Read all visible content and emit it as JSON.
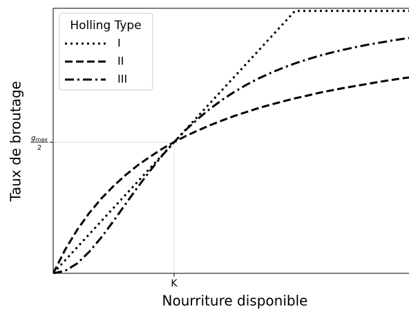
{
  "chart_data": {
    "type": "line",
    "xlabel": "Nourriture disponible",
    "ylabel": "Taux de broutage",
    "legend_title": "Holling Type",
    "legend": "upper left",
    "x": [
      0,
      0.1,
      0.2,
      0.3,
      0.4,
      0.5,
      0.6,
      0.7,
      0.8,
      0.9,
      1,
      1.1,
      1.2,
      1.3,
      1.4,
      1.5,
      1.6,
      1.7,
      1.8,
      1.9,
      2,
      2.1,
      2.2,
      2.3,
      2.4,
      2.5,
      2.6,
      2.7,
      2.8,
      2.9,
      3
    ],
    "series": [
      {
        "name": "I",
        "color": "#000000",
        "linestyle": "dotted",
        "values": [
          0,
          0.05,
          0.1,
          0.15,
          0.2,
          0.25,
          0.3,
          0.35,
          0.4,
          0.45,
          0.5,
          0.55,
          0.6,
          0.65,
          0.7,
          0.75,
          0.8,
          0.85,
          0.9,
          0.95,
          1,
          1,
          1,
          1,
          1,
          1,
          1,
          1,
          1,
          1,
          1
        ]
      },
      {
        "name": "II",
        "color": "#000000",
        "linestyle": "dashed",
        "values": [
          0,
          0.091,
          0.167,
          0.231,
          0.286,
          0.333,
          0.375,
          0.412,
          0.444,
          0.474,
          0.5,
          0.524,
          0.545,
          0.565,
          0.583,
          0.6,
          0.615,
          0.63,
          0.643,
          0.655,
          0.667,
          0.677,
          0.688,
          0.697,
          0.706,
          0.714,
          0.722,
          0.73,
          0.737,
          0.744,
          0.75
        ]
      },
      {
        "name": "III",
        "color": "#000000",
        "linestyle": "dashdot",
        "values": [
          0,
          0.0099,
          0.038,
          0.083,
          0.138,
          0.2,
          0.265,
          0.329,
          0.39,
          0.448,
          0.5,
          0.548,
          0.59,
          0.628,
          0.662,
          0.692,
          0.719,
          0.743,
          0.764,
          0.783,
          0.8,
          0.815,
          0.829,
          0.841,
          0.852,
          0.862,
          0.871,
          0.879,
          0.887,
          0.894,
          0.9
        ]
      }
    ],
    "xlim": [
      0,
      3
    ],
    "ylim": [
      0,
      1.01
    ],
    "xticks": [
      {
        "value": 1,
        "label": "K"
      }
    ],
    "yticks": [
      {
        "value": 0.5,
        "label": "g_max/2"
      }
    ]
  }
}
